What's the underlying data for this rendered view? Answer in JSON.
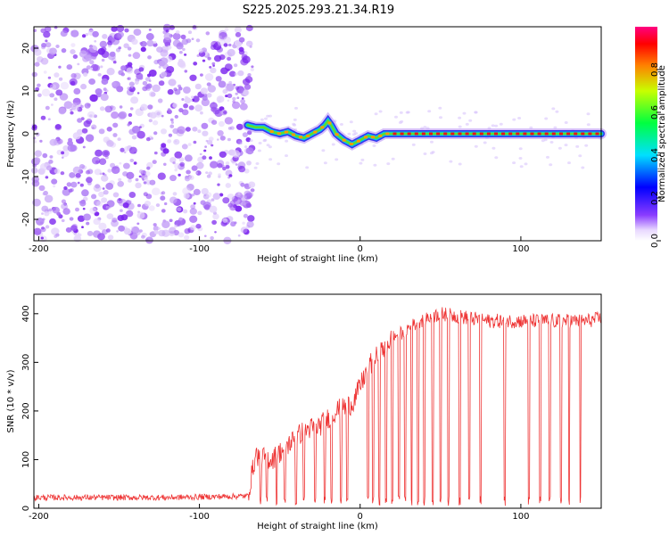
{
  "title": "S225.2025.293.21.34.R19",
  "chart_data": [
    {
      "type": "heatmap",
      "xlabel": "Height of straight line (km)",
      "ylabel": "Frequency (Hz)",
      "xlim": [
        -203,
        150
      ],
      "ylim": [
        -25,
        25
      ],
      "xticks": [
        -200,
        -100,
        0,
        100
      ],
      "yticks": [
        -20,
        -10,
        0,
        10,
        20
      ],
      "colorbar": {
        "label": "Normalized spectral amplitude",
        "range": [
          0,
          1
        ],
        "ticks": [
          "0.0",
          "0.2",
          "0.4",
          "0.6",
          "0.8"
        ],
        "tick_values": [
          0.0,
          0.2,
          0.4,
          0.6,
          0.8
        ]
      },
      "noise_region_x": [
        -203,
        -70
      ],
      "signal_track": {
        "x": [
          -70,
          -65,
          -60,
          -55,
          -50,
          -45,
          -40,
          -35,
          -30,
          -25,
          -22,
          -20,
          -18,
          -15,
          -10,
          -5,
          0,
          5,
          10,
          15,
          20,
          30,
          40,
          60,
          80,
          100,
          120,
          140,
          150
        ],
        "freq": [
          2,
          1.5,
          1.5,
          0.5,
          0,
          0.5,
          -0.5,
          -1,
          0,
          1,
          2,
          3,
          2,
          0,
          -1.5,
          -2.5,
          -1.5,
          -0.5,
          -1,
          0,
          0,
          0,
          0,
          0,
          0,
          0,
          0,
          0,
          0
        ]
      }
    },
    {
      "type": "line",
      "xlabel": "Height of straight line (km)",
      "ylabel": "SNR (10 * v/v)",
      "xlim": [
        -203,
        150
      ],
      "ylim": [
        0,
        440
      ],
      "xticks": [
        -200,
        -100,
        0,
        100
      ],
      "yticks": [
        0,
        100,
        200,
        300,
        400
      ],
      "color": "#ee3333",
      "envelope": {
        "x": [
          -203,
          -120,
          -70,
          -65,
          -55,
          -45,
          -35,
          -25,
          -15,
          -5,
          0,
          5,
          10,
          20,
          30,
          40,
          50,
          60,
          80,
          100,
          120,
          140,
          150
        ],
        "y": [
          22,
          22,
          25,
          110,
          100,
          130,
          160,
          170,
          200,
          215,
          250,
          290,
          310,
          350,
          370,
          390,
          400,
          395,
          385,
          385,
          385,
          385,
          390
        ]
      },
      "dropouts_x": [
        -62,
        -58,
        -52,
        -47,
        -40,
        -35,
        -28,
        -22,
        -18,
        -12,
        -8,
        5,
        8,
        12,
        16,
        20,
        24,
        28,
        32,
        36,
        40,
        45,
        50,
        55,
        62,
        68,
        75,
        90,
        105,
        112,
        118,
        125,
        130,
        137
      ]
    }
  ]
}
